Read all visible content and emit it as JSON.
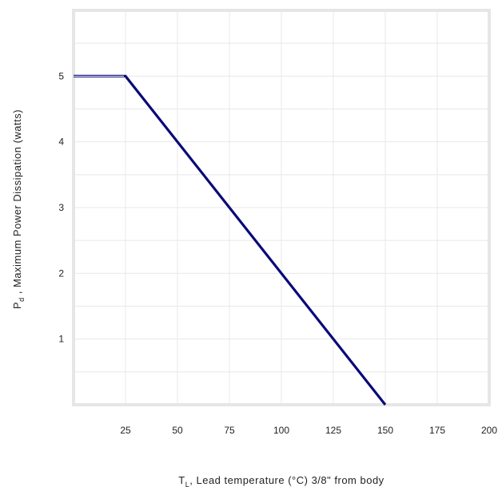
{
  "chart_data": {
    "type": "line",
    "xlabel": {
      "symbol": "T",
      "subscript": "L",
      "text": ", Lead temperature (°C) 3/8\" from body"
    },
    "ylabel": {
      "symbol": "P",
      "subscript": "d",
      "text": " ,  Maximum  Power  Dissipation  (watts)"
    },
    "xlim": [
      0,
      200
    ],
    "ylim": [
      0,
      6
    ],
    "x_ticks": [
      25,
      50,
      75,
      100,
      125,
      150,
      175,
      200
    ],
    "y_ticks": [
      1,
      2,
      3,
      4,
      5
    ],
    "grid": true,
    "line_color": "#0a0a78",
    "series": [
      {
        "x": [
          0,
          25,
          150
        ],
        "y": [
          5,
          5,
          0
        ]
      }
    ]
  }
}
